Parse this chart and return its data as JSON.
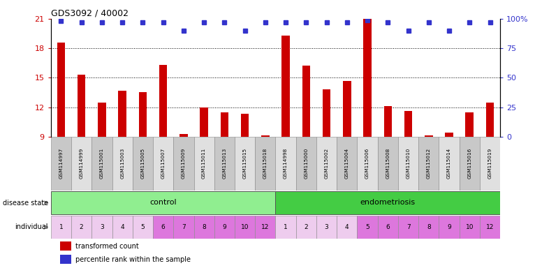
{
  "title": "GDS3092 / 40002",
  "samples": [
    "GSM114997",
    "GSM114999",
    "GSM115001",
    "GSM115003",
    "GSM115005",
    "GSM115007",
    "GSM115009",
    "GSM115011",
    "GSM115013",
    "GSM115015",
    "GSM115018",
    "GSM114998",
    "GSM115000",
    "GSM115002",
    "GSM115004",
    "GSM115006",
    "GSM115008",
    "GSM115010",
    "GSM115012",
    "GSM115014",
    "GSM115016",
    "GSM115019"
  ],
  "transformed_counts": [
    18.6,
    15.3,
    12.5,
    13.7,
    13.5,
    16.3,
    9.3,
    12.0,
    11.5,
    11.3,
    9.1,
    19.3,
    16.2,
    13.8,
    14.7,
    21.0,
    12.1,
    11.6,
    9.1,
    9.4,
    11.5,
    12.5
  ],
  "percentile_ranks": [
    98,
    97,
    97,
    97,
    97,
    97,
    90,
    97,
    97,
    90,
    97,
    97,
    97,
    97,
    97,
    99,
    97,
    90,
    97,
    90,
    97,
    97
  ],
  "disease_states": [
    "control",
    "control",
    "control",
    "control",
    "control",
    "control",
    "control",
    "control",
    "control",
    "control",
    "control",
    "endometriosis",
    "endometriosis",
    "endometriosis",
    "endometriosis",
    "endometriosis",
    "endometriosis",
    "endometriosis",
    "endometriosis",
    "endometriosis",
    "endometriosis",
    "endometriosis"
  ],
  "individuals": [
    "1",
    "2",
    "3",
    "4",
    "5",
    "6",
    "7",
    "8",
    "9",
    "10",
    "12",
    "1",
    "2",
    "3",
    "4",
    "5",
    "6",
    "7",
    "8",
    "9",
    "10",
    "12"
  ],
  "ylim_left": [
    9,
    21
  ],
  "ylim_right": [
    0,
    100
  ],
  "yticks_left": [
    9,
    12,
    15,
    18,
    21
  ],
  "yticks_right": [
    0,
    25,
    50,
    75,
    100
  ],
  "bar_color": "#cc0000",
  "dot_color": "#3333cc",
  "control_color": "#90ee90",
  "endometriosis_color": "#44cc44",
  "ctrl_indiv_colors": [
    "#eeccee",
    "#eeccee",
    "#eeccee",
    "#eeccee",
    "#eeccee",
    "#dd77dd",
    "#dd77dd",
    "#dd77dd",
    "#dd77dd",
    "#dd77dd",
    "#dd77dd"
  ],
  "endo_indiv_colors": [
    "#eeccee",
    "#eeccee",
    "#eeccee",
    "#eeccee",
    "#dd77dd",
    "#dd77dd",
    "#dd77dd",
    "#dd77dd",
    "#dd77dd",
    "#dd77dd",
    "#dd77dd"
  ],
  "label_color_left": "#cc0000",
  "label_color_right": "#3333cc",
  "grid_lines": [
    12,
    15,
    18
  ],
  "ctrl_count": 11,
  "endo_count": 11
}
